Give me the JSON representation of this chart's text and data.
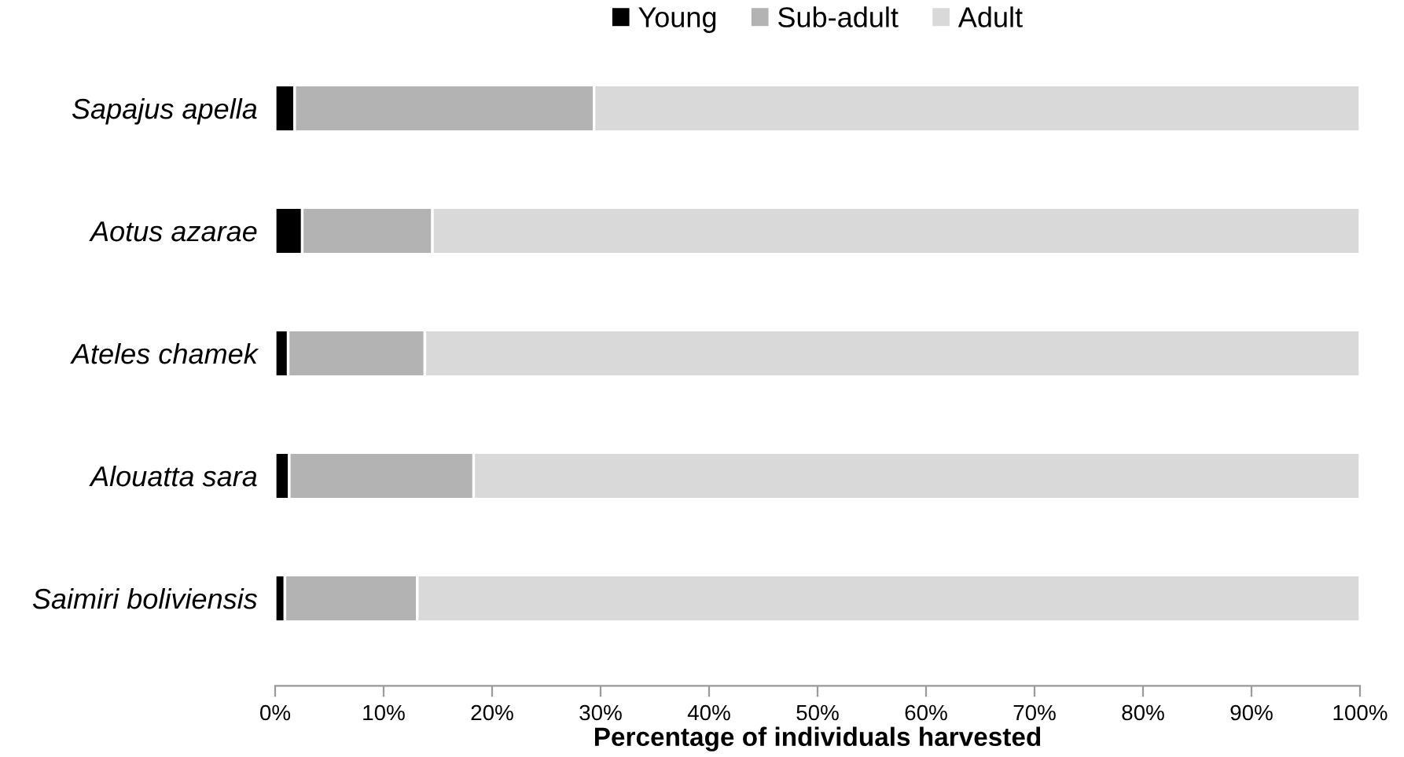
{
  "chart_data": {
    "type": "bar",
    "orientation": "horizontal",
    "stacked": true,
    "xlabel": "Percentage of individuals harvested",
    "categories": [
      "Sapajus apella",
      "Aotus azarae",
      "Ateles chamek",
      "Alouatta sara",
      "Saimiri boliviensis"
    ],
    "series": [
      {
        "name": "Young",
        "color": "#000000",
        "values": [
          1.8,
          2.5,
          1.2,
          1.3,
          0.9
        ]
      },
      {
        "name": "Sub-adult",
        "color": "#b3b3b3",
        "values": [
          27.6,
          12.0,
          12.6,
          17.0,
          12.2
        ]
      },
      {
        "name": "Adult",
        "color": "#d9d9d9",
        "values": [
          70.6,
          85.5,
          86.2,
          81.7,
          86.9
        ]
      }
    ],
    "xlim": [
      0,
      100
    ],
    "xticks": [
      {
        "value": 0,
        "label": "0%"
      },
      {
        "value": 10,
        "label": "10%"
      },
      {
        "value": 20,
        "label": "20%"
      },
      {
        "value": 30,
        "label": "30%"
      },
      {
        "value": 40,
        "label": "40%"
      },
      {
        "value": 50,
        "label": "50%"
      },
      {
        "value": 60,
        "label": "60%"
      },
      {
        "value": 70,
        "label": "70%"
      },
      {
        "value": 80,
        "label": "80%"
      },
      {
        "value": 90,
        "label": "90%"
      },
      {
        "value": 100,
        "label": "100%"
      }
    ],
    "grid": false,
    "legend": "top"
  }
}
